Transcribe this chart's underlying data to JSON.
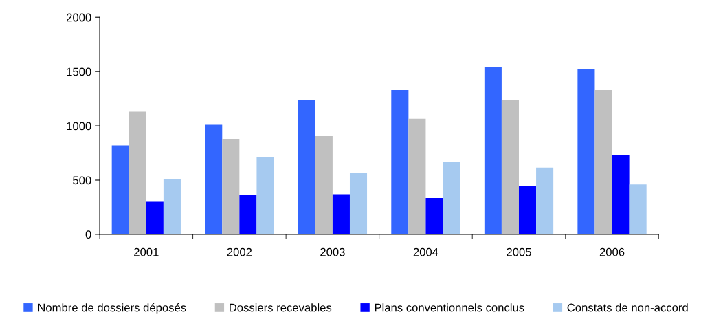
{
  "chart_data": {
    "type": "bar",
    "categories": [
      "2001",
      "2002",
      "2003",
      "2004",
      "2005",
      "2006"
    ],
    "series": [
      {
        "name": "Nombre de dossiers déposés",
        "color": "#3366ff",
        "values": [
          820,
          1010,
          1240,
          1330,
          1545,
          1520
        ]
      },
      {
        "name": "Dossiers recevables",
        "color": "#c0c0c0",
        "values": [
          1130,
          880,
          905,
          1065,
          1240,
          1330
        ]
      },
      {
        "name": "Plans conventionnels conclus",
        "color": "#0000ff",
        "values": [
          300,
          360,
          370,
          335,
          450,
          730
        ]
      },
      {
        "name": "Constats de non-accord",
        "color": "#a6caf0",
        "values": [
          510,
          715,
          565,
          665,
          615,
          460
        ]
      }
    ],
    "ylim": [
      0,
      2000
    ],
    "yticks": [
      0,
      500,
      1000,
      1500,
      2000
    ],
    "grid": false,
    "legend": "bottom"
  }
}
